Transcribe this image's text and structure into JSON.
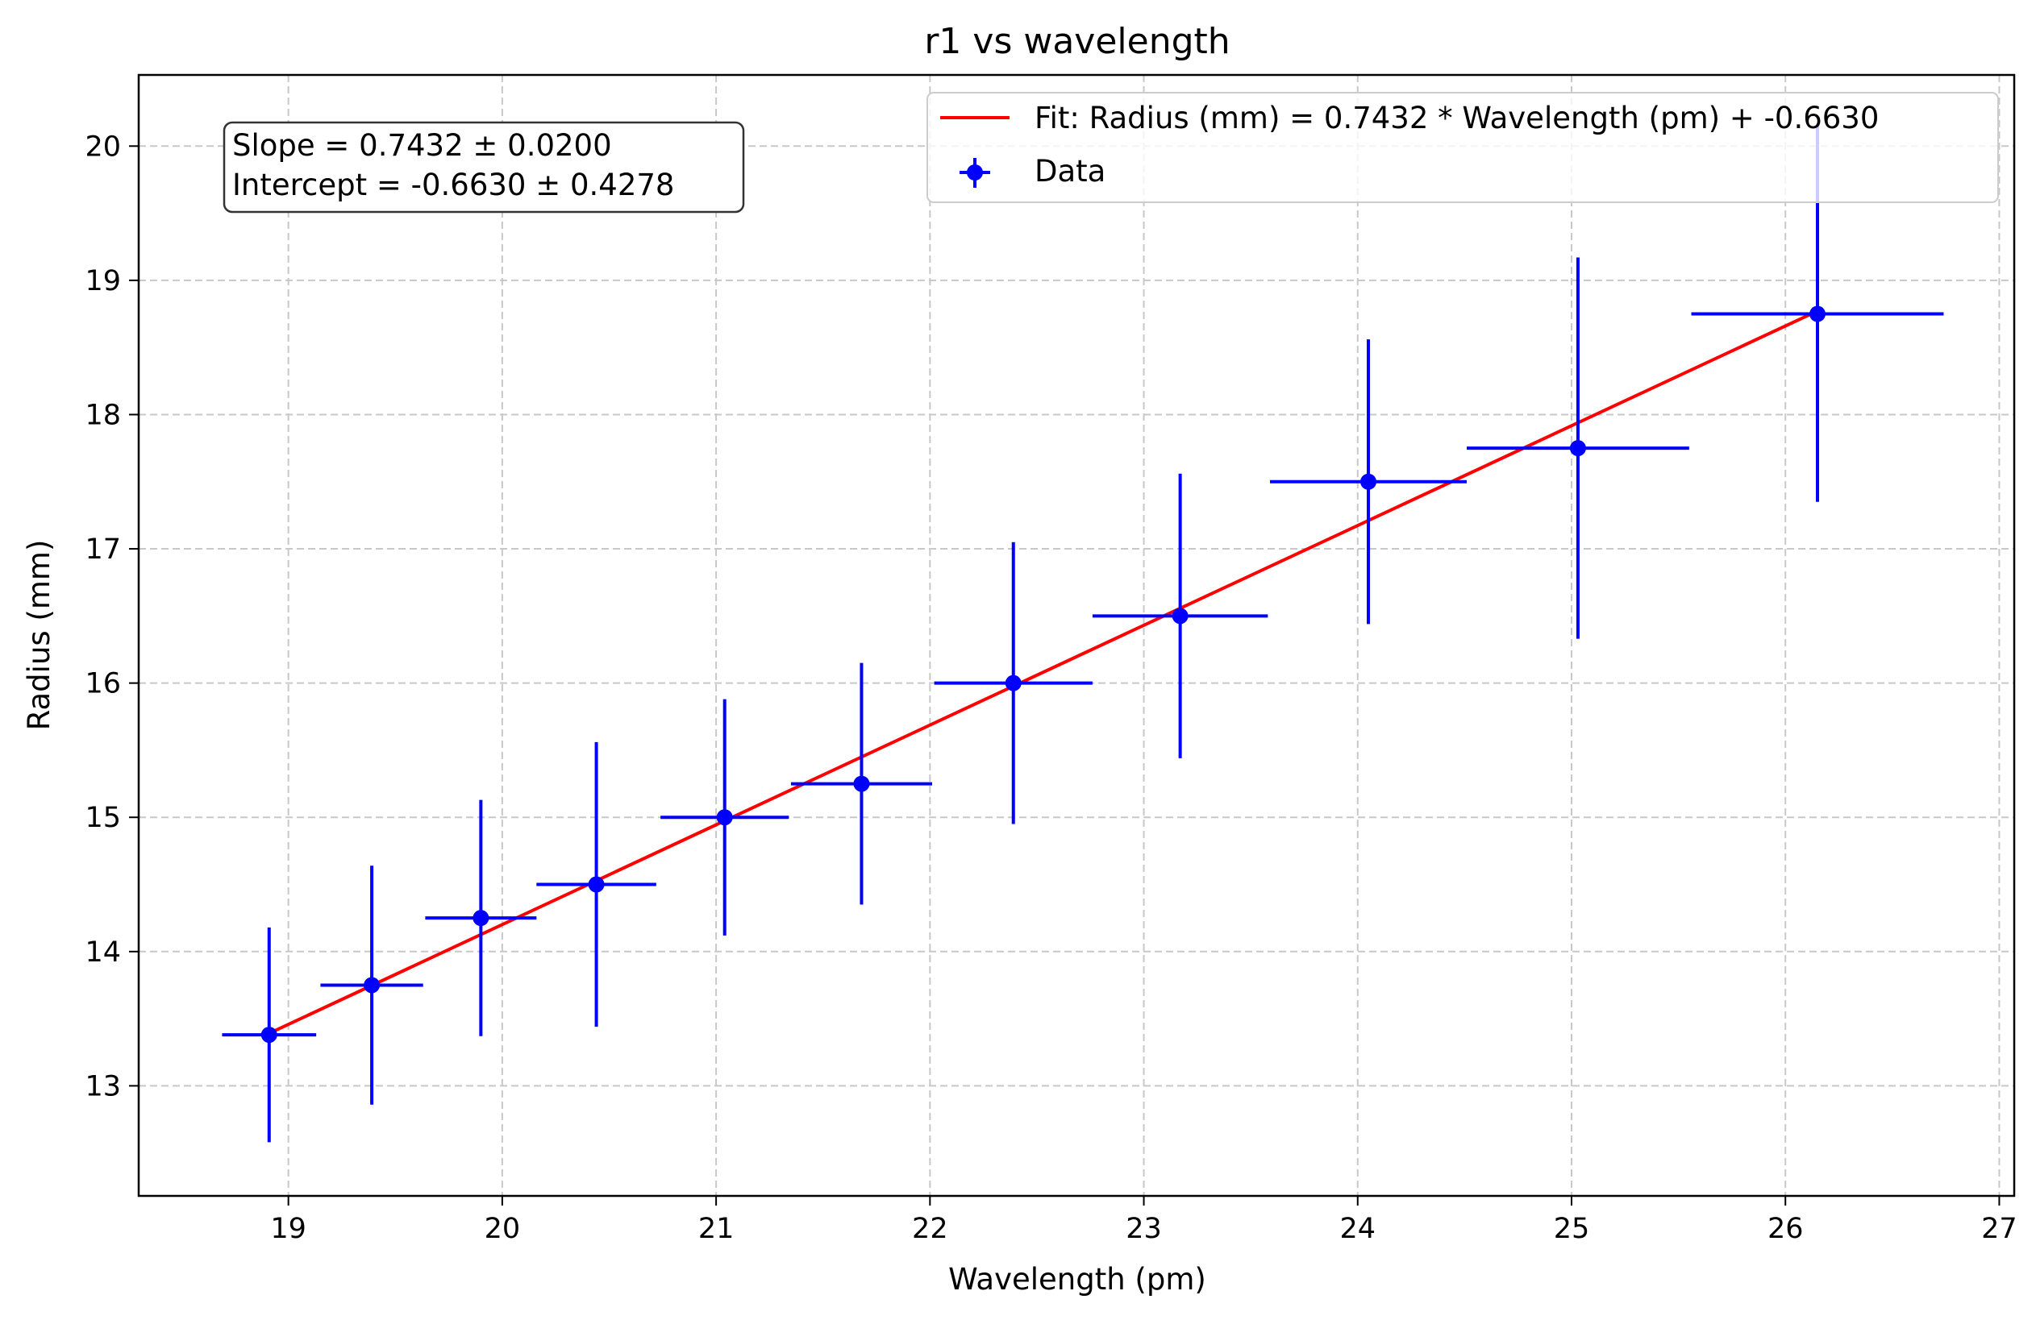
{
  "chart_data": {
    "type": "scatter",
    "title": "r1 vs wavelength",
    "xlabel": "Wavelength (pm)",
    "ylabel": "Radius (mm)",
    "xlim": [
      18.3,
      27.07
    ],
    "ylim": [
      12.18,
      20.53
    ],
    "xticks": [
      "19",
      "20",
      "21",
      "22",
      "23",
      "24",
      "25",
      "26",
      "27"
    ],
    "yticks": [
      "13",
      "14",
      "15",
      "16",
      "17",
      "18",
      "19",
      "20"
    ],
    "grid": true,
    "legend_position": "top-right",
    "annotation": [
      "Slope = 0.7432 ± 0.0200",
      "Intercept = -0.6630 ± 0.4278"
    ],
    "series": [
      {
        "name": "Fit: Radius (mm) = 0.7432 * Wavelength (pm) + -0.6630",
        "type": "line",
        "color": "#ff0000",
        "slope": 0.7432,
        "intercept": -0.663,
        "x_range": [
          18.91,
          26.15
        ]
      },
      {
        "name": "Data",
        "type": "errorbar",
        "color": "#0000ff",
        "points": [
          {
            "x": 18.91,
            "y": 13.38,
            "xerr": 0.22,
            "yerr": 0.8
          },
          {
            "x": 19.39,
            "y": 13.75,
            "xerr": 0.24,
            "yerr": 0.89
          },
          {
            "x": 19.9,
            "y": 14.25,
            "xerr": 0.26,
            "yerr": 0.88
          },
          {
            "x": 20.44,
            "y": 14.5,
            "xerr": 0.28,
            "yerr": 1.06
          },
          {
            "x": 21.04,
            "y": 15.0,
            "xerr": 0.3,
            "yerr": 0.88
          },
          {
            "x": 21.68,
            "y": 15.25,
            "xerr": 0.33,
            "yerr": 0.9
          },
          {
            "x": 22.39,
            "y": 16.0,
            "xerr": 0.37,
            "yerr": 1.05
          },
          {
            "x": 23.17,
            "y": 16.5,
            "xerr": 0.41,
            "yerr": 1.06
          },
          {
            "x": 24.05,
            "y": 17.5,
            "xerr": 0.46,
            "yerr": 1.06
          },
          {
            "x": 25.03,
            "y": 17.75,
            "xerr": 0.52,
            "yerr": 1.42
          },
          {
            "x": 26.15,
            "y": 18.75,
            "xerr": 0.59,
            "yerr": 1.4
          }
        ]
      }
    ]
  }
}
